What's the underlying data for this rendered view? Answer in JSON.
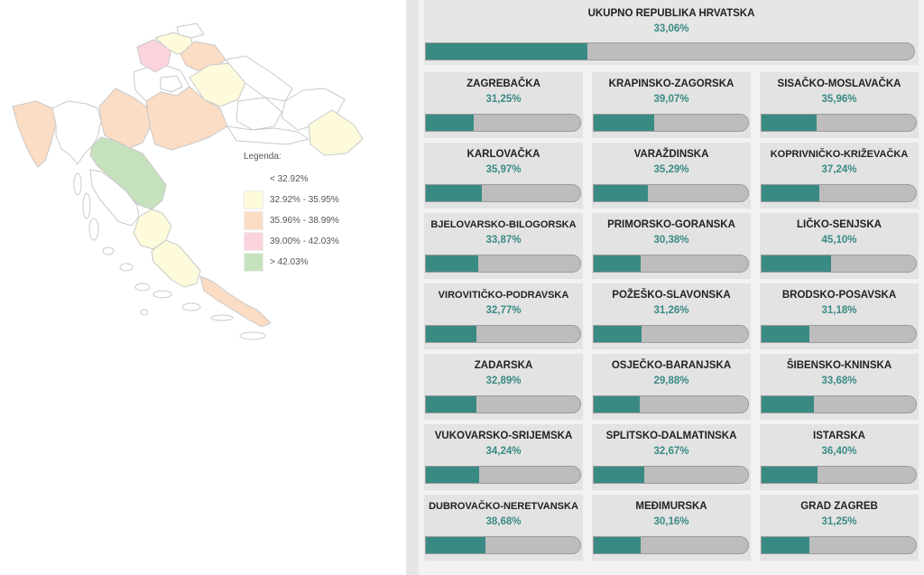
{
  "legend": {
    "title": "Legenda:",
    "items": [
      {
        "label": "< 32.92%",
        "color": "#ffffff"
      },
      {
        "label": "32.92% - 35.95%",
        "color": "#fdfbdc"
      },
      {
        "label": "35.96% - 38.99%",
        "color": "#fbdcc4"
      },
      {
        "label": "39.00% - 42.03%",
        "color": "#fbd3dc"
      },
      {
        "label": "> 42.03%",
        "color": "#c6e2bd"
      }
    ]
  },
  "total": {
    "title": "UKUPNO REPUBLIKA HRVATSKA",
    "value": "33,06%",
    "fraction": 0.3306
  },
  "counties": [
    {
      "name": "ZAGREBAČKA",
      "value": "31,25%",
      "fraction": 0.3125
    },
    {
      "name": "KRAPINSKO-ZAGORSKA",
      "value": "39,07%",
      "fraction": 0.3907
    },
    {
      "name": "SISAČKO-MOSLAVAČKA",
      "value": "35,96%",
      "fraction": 0.3596
    },
    {
      "name": "KARLOVAČKA",
      "value": "35,97%",
      "fraction": 0.3597
    },
    {
      "name": "VARAŽDINSKA",
      "value": "35,29%",
      "fraction": 0.3529
    },
    {
      "name": "KOPRIVNIČKO-KRIŽEVAČKA",
      "value": "37,24%",
      "fraction": 0.3724
    },
    {
      "name": "BJELOVARSKO-BILOGORSKA",
      "value": "33,87%",
      "fraction": 0.3387
    },
    {
      "name": "PRIMORSKO-GORANSKA",
      "value": "30,38%",
      "fraction": 0.3038
    },
    {
      "name": "LIČKO-SENJSKA",
      "value": "45,10%",
      "fraction": 0.451
    },
    {
      "name": "VIROVITIČKO-PODRAVSKA",
      "value": "32,77%",
      "fraction": 0.3277
    },
    {
      "name": "POŽEŠKO-SLAVONSKA",
      "value": "31,26%",
      "fraction": 0.3126
    },
    {
      "name": "BRODSKO-POSAVSKA",
      "value": "31,18%",
      "fraction": 0.3118
    },
    {
      "name": "ZADARSKA",
      "value": "32,89%",
      "fraction": 0.3289
    },
    {
      "name": "OSJEČKO-BARANJSKA",
      "value": "29,88%",
      "fraction": 0.2988
    },
    {
      "name": "ŠIBENSKO-KNINSKA",
      "value": "33,68%",
      "fraction": 0.3368
    },
    {
      "name": "VUKOVARSKO-SRIJEMSKA",
      "value": "34,24%",
      "fraction": 0.3424
    },
    {
      "name": "SPLITSKO-DALMATINSKA",
      "value": "32,67%",
      "fraction": 0.3267
    },
    {
      "name": "ISTARSKA",
      "value": "36,40%",
      "fraction": 0.364
    },
    {
      "name": "DUBROVAČKO-NERETVANSKA",
      "value": "38,68%",
      "fraction": 0.3868
    },
    {
      "name": "MEĐIMURSKA",
      "value": "30,16%",
      "fraction": 0.3016
    },
    {
      "name": "GRAD ZAGREB",
      "value": "31,25%",
      "fraction": 0.3125
    }
  ],
  "colors": {
    "accent": "#3a8a84",
    "bar_track": "#bdbdbd"
  }
}
